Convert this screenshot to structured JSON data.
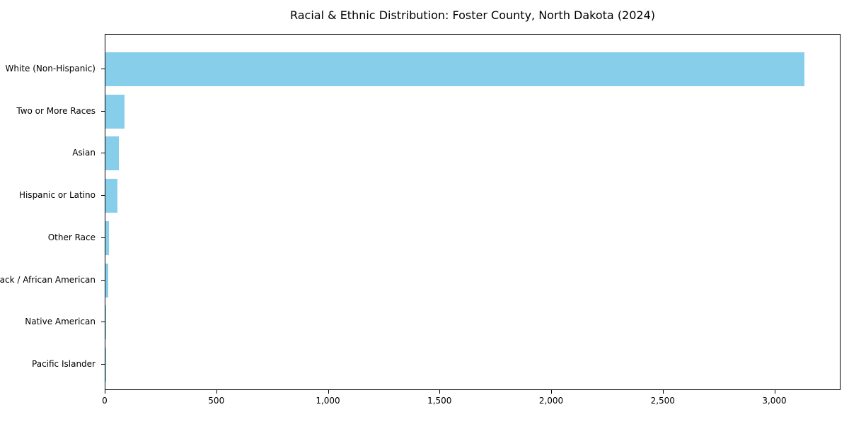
{
  "chart_data": {
    "type": "bar",
    "orientation": "horizontal",
    "title": "Racial & Ethnic Distribution: Foster County, North Dakota (2024)",
    "categories": [
      "White (Non-Hispanic)",
      "Two or More Races",
      "Asian",
      "Hispanic or Latino",
      "Other Race",
      "Black / African American",
      "Native American",
      "Pacific Islander"
    ],
    "values": [
      3130,
      85,
      60,
      55,
      15,
      12,
      4,
      1
    ],
    "xlabel": "",
    "ylabel": "",
    "xlim": [
      0,
      3290
    ],
    "x_ticks": [
      0,
      500,
      1000,
      1500,
      2000,
      2500,
      3000
    ],
    "x_tick_labels": [
      "0",
      "500",
      "1,000",
      "1,500",
      "2,000",
      "2,500",
      "3,000"
    ],
    "grid": false,
    "legend_position": null,
    "bar_color": "#87CEEB"
  },
  "colors": {
    "bar": "#87CEEB",
    "axis": "#000000",
    "text": "#000000",
    "background": "#ffffff"
  }
}
